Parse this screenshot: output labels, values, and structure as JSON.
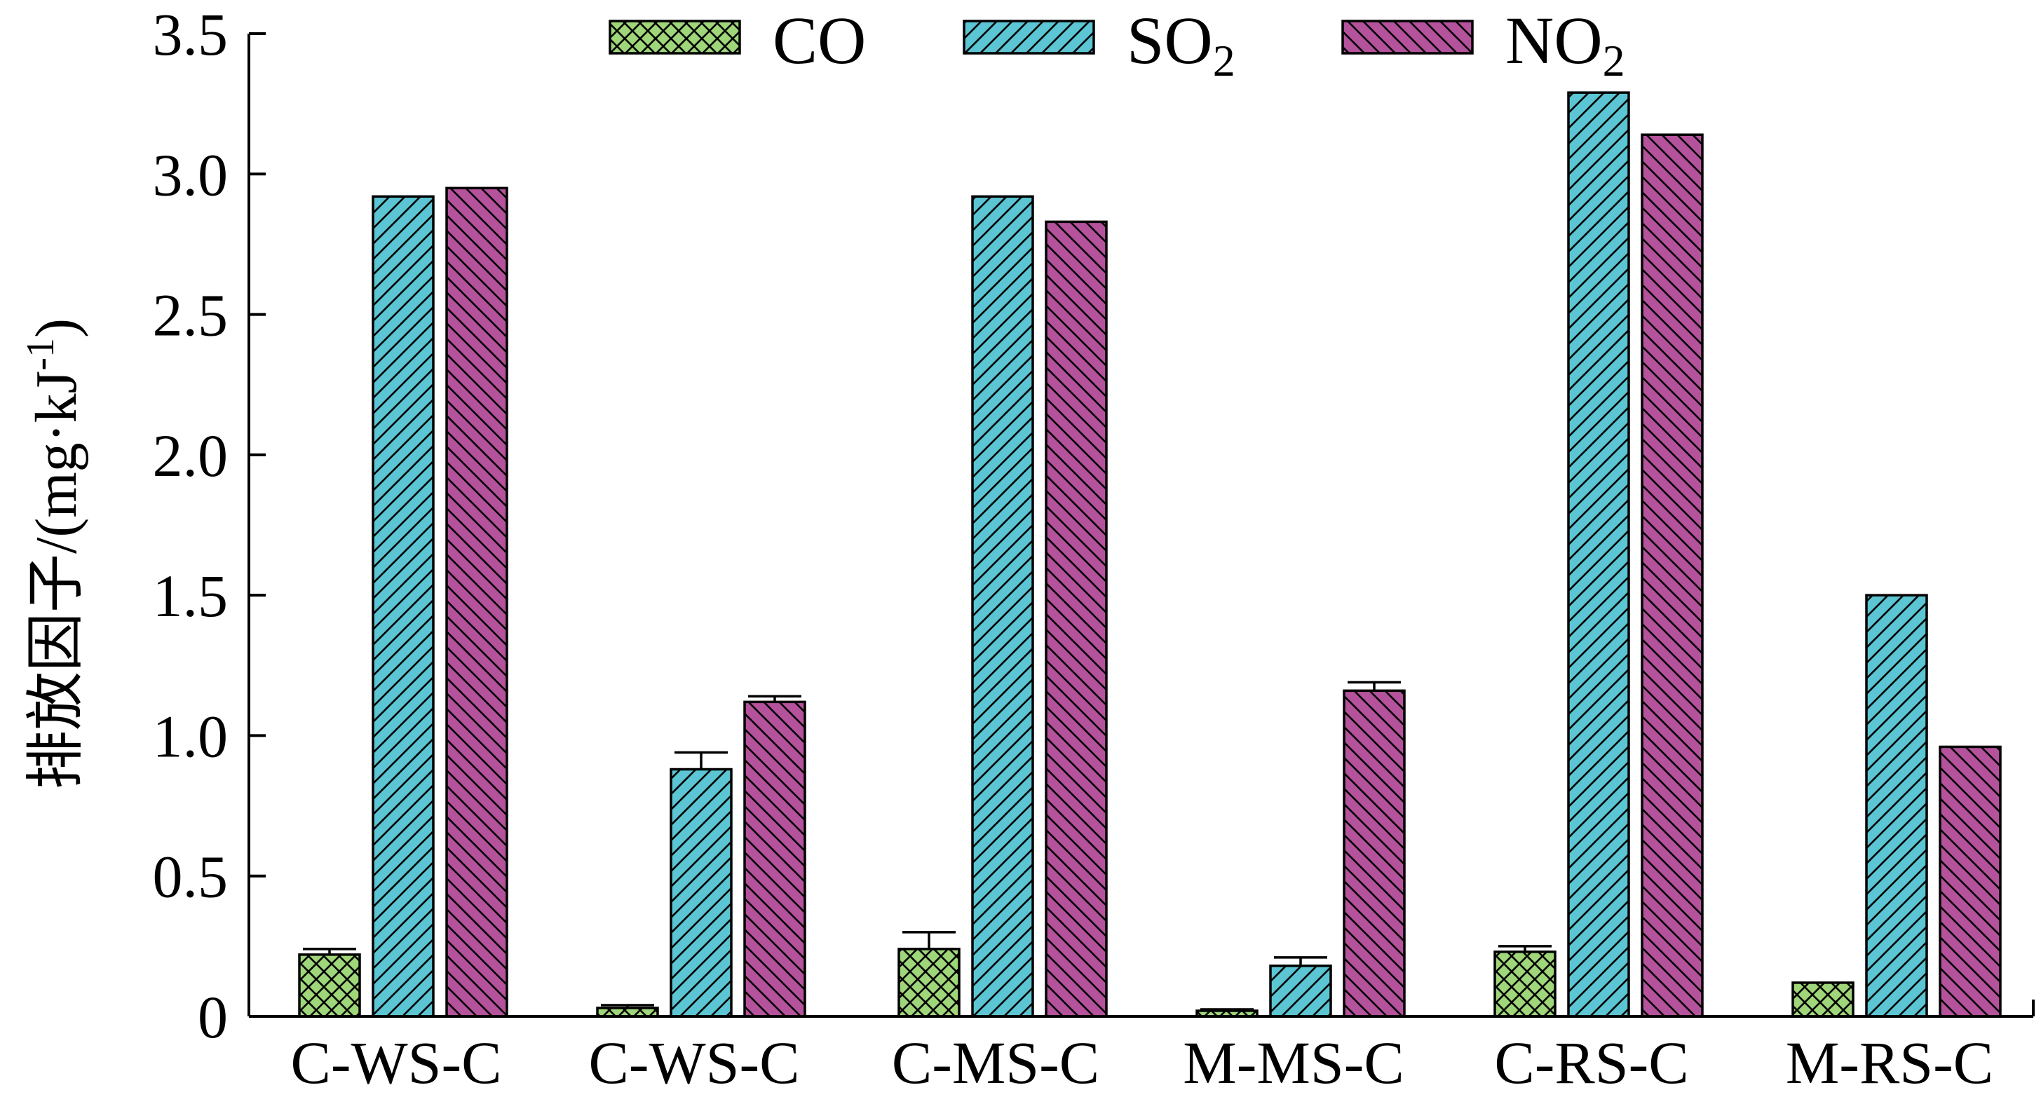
{
  "chart_data": {
    "type": "bar",
    "ylabel": "排放因子/(mg·kJ⁻¹)",
    "ylabel_parts": {
      "main": "排放因子/(mg·kJ",
      "sup": "-1",
      "close": ")"
    },
    "ylim": [
      0,
      3.5
    ],
    "yticks": [
      {
        "value": 0,
        "label": "0"
      },
      {
        "value": 0.5,
        "label": "0.5"
      },
      {
        "value": 1.0,
        "label": "1.0"
      },
      {
        "value": 1.5,
        "label": "1.5"
      },
      {
        "value": 2.0,
        "label": "2.0"
      },
      {
        "value": 2.5,
        "label": "2.5"
      },
      {
        "value": 3.0,
        "label": "3.0"
      },
      {
        "value": 3.5,
        "label": "3.5"
      }
    ],
    "categories": [
      "C-WS-C",
      "C-WS-C",
      "C-MS-C",
      "M-MS-C",
      "C-RS-C",
      "M-RS-C"
    ],
    "legend_position": "top",
    "grid": false,
    "series": [
      {
        "name": "CO",
        "label_main": "CO",
        "label_sub": "",
        "fill": "#9fd67a",
        "pattern": "crosshatch",
        "values": [
          0.22,
          0.03,
          0.24,
          0.02,
          0.23,
          0.12
        ],
        "errors": [
          0.02,
          0.01,
          0.06,
          0.005,
          0.02,
          0
        ]
      },
      {
        "name": "SO2",
        "label_main": "SO",
        "label_sub": "2",
        "fill": "#5bc5d3",
        "pattern": "forward-diagonal",
        "values": [
          2.92,
          0.88,
          2.92,
          0.18,
          3.29,
          1.5
        ],
        "errors": [
          0,
          0.06,
          0,
          0.03,
          0,
          0
        ]
      },
      {
        "name": "NO2",
        "label_main": "NO",
        "label_sub": "2",
        "fill": "#b5529c",
        "pattern": "back-diagonal",
        "values": [
          2.95,
          1.12,
          2.83,
          1.16,
          3.14,
          0.96
        ],
        "errors": [
          0,
          0.02,
          0,
          0.03,
          0,
          0
        ]
      }
    ]
  }
}
